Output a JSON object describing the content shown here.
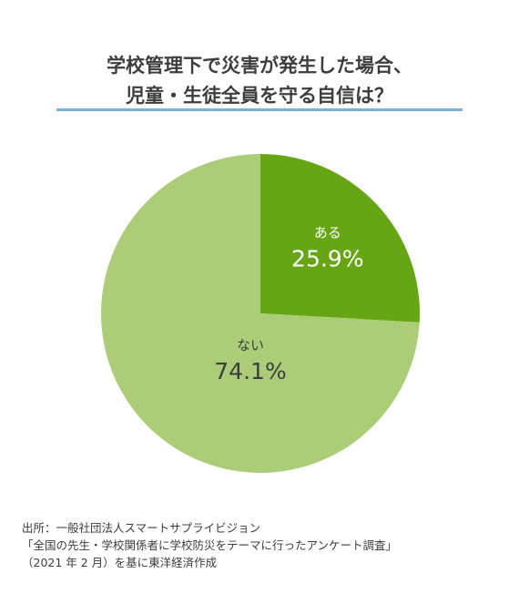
{
  "title": {
    "line1": "学校管理下で災害が発生した場合、",
    "line2": "児童・生徒全員を守る自信は？"
  },
  "colors": {
    "title_rule": "#7bb0d4",
    "slice_yes": "#66a513",
    "slice_no": "#abcd78",
    "label_dark": "#3d3d3d",
    "label_light": "#ffffff"
  },
  "chart_data": {
    "type": "pie",
    "title": "学校管理下で災害が発生した場合、児童・生徒全員を守る自信は？",
    "categories": [
      "ある",
      "ない"
    ],
    "values": [
      25.9,
      74.1
    ],
    "unit": "%",
    "value_labels": [
      "25.9%",
      "74.1%"
    ]
  },
  "source": {
    "line1": "出所：一般社団法人スマートサプライビジョン",
    "line2": "「全国の先生・学校関係者に学校防災をテーマに行ったアンケート調査」",
    "line3": "（2021 年 2 月）を基に東洋経済作成"
  }
}
